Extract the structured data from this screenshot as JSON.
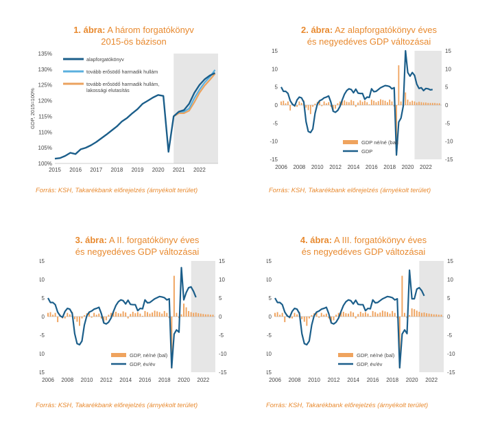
{
  "colors": {
    "title": "#E8892E",
    "base": "#1B5E8A",
    "alt_light": "#5AB0DE",
    "alt_orange": "#EBA25E",
    "bar": "#EFA35E",
    "shade": "#E6E6E6",
    "axis_text": "#444444"
  },
  "chart_data": [
    {
      "type": "line",
      "number": "1. ábra:",
      "title": "A három forgatókönyv\n2015-ös bázison",
      "ylabel": "GDP, 2015=100%",
      "xlim": [
        2015,
        2022.9
      ],
      "ylim": [
        100,
        135
      ],
      "yticks": [
        "100%",
        "105%",
        "110%",
        "115%",
        "120%",
        "125%",
        "130%",
        "135%"
      ],
      "xticks": [
        "2015",
        "2016",
        "2017",
        "2018",
        "2019",
        "2020",
        "2021",
        "2022"
      ],
      "forecast_start": 2020.75,
      "legend": [
        "alapforgatókönyv",
        "tovább erősödő harmadik hullám",
        "tovább erősödő harmadik hullám,\nlakossági elutasítás"
      ],
      "series": [
        {
          "name": "alapforgatókönyv",
          "x": [
            2015,
            2015.25,
            2015.5,
            2015.75,
            2016,
            2016.25,
            2016.5,
            2016.75,
            2017,
            2017.25,
            2017.5,
            2017.75,
            2018,
            2018.25,
            2018.5,
            2018.75,
            2019,
            2019.25,
            2019.5,
            2019.75,
            2020,
            2020.25,
            2020.5,
            2020.75,
            2021,
            2021.25,
            2021.5,
            2021.75,
            2022,
            2022.25,
            2022.5,
            2022.75
          ],
          "values": [
            101.5,
            101.7,
            102.4,
            103.4,
            103.0,
            104.5,
            105.0,
            105.8,
            106.8,
            108.0,
            109.2,
            110.5,
            111.8,
            113.4,
            114.5,
            116.0,
            117.3,
            119.0,
            120.0,
            121.0,
            121.8,
            121.5,
            103.7,
            115.0,
            116.5,
            117.0,
            119.0,
            122.5,
            125.0,
            126.8,
            128.0,
            128.8
          ]
        },
        {
          "name": "tovább erősödő harmadik hullám",
          "x": [
            2020.75,
            2021,
            2021.25,
            2021.5,
            2021.75,
            2022,
            2022.25,
            2022.5,
            2022.75
          ],
          "values": [
            115.0,
            116.4,
            116.5,
            117.5,
            120.8,
            123.5,
            125.8,
            127.5,
            129.8
          ]
        },
        {
          "name": "tovább erősödő harmadik hullám, lakossági elutasítás",
          "x": [
            2020.75,
            2021,
            2021.25,
            2021.5,
            2021.75,
            2022,
            2022.25,
            2022.5,
            2022.75
          ],
          "values": [
            115.0,
            116.0,
            116.0,
            116.8,
            119.5,
            122.5,
            124.8,
            126.6,
            128.6
          ]
        }
      ]
    },
    {
      "type": "bar+line",
      "number": "2. ábra:",
      "title": "Az alapforgatókönyv éves\nés negyedéves GDP változásai",
      "xlim": [
        2006,
        2023.75
      ],
      "ylim": [
        -15,
        15
      ],
      "yticks": [
        "-15",
        "-10",
        "-5",
        "0",
        "5",
        "10",
        "15"
      ],
      "xticks": [
        "2006",
        "2008",
        "2010",
        "2012",
        "2014",
        "2016",
        "2018",
        "2020",
        "2022"
      ],
      "forecast_start": 2020.75,
      "legend": [
        "GDP né/né (bal)",
        "GDP"
      ],
      "bars": [
        1.0,
        1.2,
        0.5,
        1.0,
        -1.5,
        0.5,
        -0.5,
        -0.5,
        1.0,
        0.6,
        1.3,
        -0.7,
        -1.4,
        -2.5,
        -0.5,
        0.4,
        0.9,
        1.0,
        -0.3,
        1.0,
        0.5,
        0.8,
        -0.5,
        -1.5,
        -1.0,
        0.5,
        1.0,
        1.2,
        1.3,
        0.9,
        0.8,
        1.4,
        1.1,
        -0.5,
        0.7,
        1.3,
        0.9,
        1.2,
        0.8,
        0.2,
        1.5,
        1.2,
        0.8,
        1.1,
        1.6,
        1.4,
        1.2,
        0.8,
        1.5,
        1.0,
        -0.4,
        -14.0,
        11.0,
        1.0,
        -0.4,
        3.5,
        1.5,
        0.9,
        1.2,
        1.0,
        0.7,
        0.9,
        0.8,
        0.7,
        0.7,
        0.6,
        0.6,
        0.6,
        0.6,
        0.5,
        0.5
      ],
      "line": {
        "name": "GDP",
        "values": [
          5.0,
          3.8,
          3.8,
          3.2,
          1.2,
          0.2,
          -0.2,
          1.4,
          2.2,
          2.0,
          0.8,
          -4.6,
          -7.3,
          -7.6,
          -6.6,
          -2.3,
          0.2,
          1.2,
          1.5,
          2.0,
          2.2,
          2.5,
          0.8,
          -1.7,
          -2.0,
          -1.5,
          -0.4,
          1.4,
          3.0,
          4.0,
          4.5,
          4.3,
          3.4,
          4.4,
          3.3,
          3.2,
          3.2,
          1.6,
          2.2,
          2.1,
          4.5,
          3.7,
          3.8,
          4.3,
          4.8,
          5.1,
          5.4,
          5.3,
          5.1,
          4.5,
          4.8,
          -13.8,
          -4.7,
          -3.6,
          -0.3,
          15.0,
          9.0,
          8.0,
          9.0,
          8.2,
          5.8,
          4.6,
          4.8,
          4.0,
          4.6,
          4.5,
          4.2,
          4.3
        ]
      }
    },
    {
      "type": "bar+line",
      "number": "3. ábra:",
      "title": "A II. forgatókönyv éves\nés negyedéves GDP változásai",
      "xlim": [
        2006,
        2023.25
      ],
      "ylim": [
        -15,
        15
      ],
      "yticks": [
        "-15",
        "-10",
        "-5",
        "0",
        "5",
        "10",
        "15"
      ],
      "xticks": [
        "2006",
        "2008",
        "2010",
        "2012",
        "2014",
        "2016",
        "2018",
        "2020",
        "2022"
      ],
      "forecast_start": 2020.75,
      "legend": [
        "GDP, né/né (bal)",
        "GDP, év/év"
      ],
      "bars": [
        1.0,
        1.2,
        0.5,
        1.0,
        -1.5,
        0.5,
        -0.5,
        -0.5,
        1.0,
        0.6,
        1.3,
        -0.7,
        -1.4,
        -2.5,
        -0.5,
        0.4,
        0.9,
        1.0,
        -0.3,
        1.0,
        0.5,
        0.8,
        -0.5,
        -1.5,
        -1.0,
        0.5,
        1.0,
        1.2,
        1.3,
        0.9,
        0.8,
        1.4,
        1.1,
        -0.5,
        0.7,
        1.3,
        0.9,
        1.2,
        0.8,
        0.2,
        1.5,
        1.2,
        0.8,
        1.1,
        1.6,
        1.4,
        1.2,
        0.8,
        1.5,
        1.0,
        -0.4,
        -14.0,
        11.0,
        1.0,
        -0.4,
        0.6,
        3.5,
        2.5,
        1.5,
        1.2,
        1.0,
        1.1,
        0.9,
        0.8,
        0.7,
        0.6,
        0.6,
        0.5,
        0.5
      ],
      "line": {
        "name": "GDP, év/év",
        "values": [
          5.0,
          3.8,
          3.8,
          3.2,
          1.2,
          0.2,
          -0.2,
          1.4,
          2.2,
          2.0,
          0.8,
          -4.6,
          -7.3,
          -7.6,
          -6.6,
          -2.3,
          0.2,
          1.2,
          1.5,
          2.0,
          2.2,
          2.5,
          0.8,
          -1.7,
          -2.0,
          -1.5,
          -0.4,
          1.4,
          3.0,
          4.0,
          4.5,
          4.3,
          3.4,
          4.4,
          3.3,
          3.2,
          3.2,
          1.6,
          2.2,
          2.1,
          4.5,
          3.7,
          3.8,
          4.3,
          4.8,
          5.1,
          5.4,
          5.3,
          5.1,
          4.5,
          4.8,
          -13.8,
          -4.7,
          -3.6,
          -4.2,
          13.2,
          4.5,
          6.5,
          7.8,
          8.0,
          6.8,
          5.2
        ]
      }
    },
    {
      "type": "bar+line",
      "number": "4. ábra:",
      "title": "A III. forgatókönyv éves\nés negyedéves GDP változásai",
      "xlim": [
        2006,
        2023.25
      ],
      "ylim": [
        -15,
        15
      ],
      "yticks": [
        "-15",
        "-10",
        "-5",
        "0",
        "5",
        "10",
        "15"
      ],
      "xticks": [
        "2006",
        "2008",
        "2010",
        "2012",
        "2014",
        "2016",
        "2018",
        "2020",
        "2022"
      ],
      "forecast_start": 2020.75,
      "legend": [
        "GDP, né/né (bal)",
        "GDP, év/év"
      ],
      "bars": [
        1.0,
        1.2,
        0.5,
        1.0,
        -1.5,
        0.5,
        -0.5,
        -0.5,
        1.0,
        0.6,
        1.3,
        -0.7,
        -1.4,
        -2.5,
        -0.5,
        0.4,
        0.9,
        1.0,
        -0.3,
        1.0,
        0.5,
        0.8,
        -0.5,
        -1.5,
        -1.0,
        0.5,
        1.0,
        1.2,
        1.3,
        0.9,
        0.8,
        1.4,
        1.1,
        -0.5,
        0.7,
        1.3,
        0.9,
        1.2,
        0.8,
        0.2,
        1.5,
        1.2,
        0.8,
        1.1,
        1.6,
        1.4,
        1.2,
        0.8,
        1.5,
        1.0,
        -0.4,
        -14.0,
        11.0,
        1.0,
        -0.4,
        0.4,
        2.2,
        2.0,
        1.6,
        1.3,
        1.0,
        1.1,
        0.9,
        0.8,
        0.7,
        0.6,
        0.6,
        0.5,
        0.5
      ],
      "line": {
        "name": "GDP, év/év",
        "values": [
          5.0,
          3.8,
          3.8,
          3.2,
          1.2,
          0.2,
          -0.2,
          1.4,
          2.2,
          2.0,
          0.8,
          -4.6,
          -7.3,
          -7.6,
          -6.6,
          -2.3,
          0.2,
          1.2,
          1.5,
          2.0,
          2.2,
          2.5,
          0.8,
          -1.7,
          -2.0,
          -1.5,
          -0.4,
          1.4,
          3.0,
          4.0,
          4.5,
          4.3,
          3.4,
          4.4,
          3.3,
          3.2,
          3.2,
          1.6,
          2.2,
          2.1,
          4.5,
          3.7,
          3.8,
          4.3,
          4.8,
          5.1,
          5.4,
          5.3,
          5.1,
          4.5,
          4.8,
          -13.8,
          -4.7,
          -3.6,
          -4.6,
          12.5,
          4.8,
          4.8,
          7.4,
          7.8,
          7.0,
          5.6
        ]
      }
    }
  ],
  "sources": [
    "Forrás: KSH, Takarékbank előrejelzés (árnyékolt terület)",
    "Forrás: KSH, Takarékbank előrejelzés (árnyékolt terület)",
    "Forrás: KSH, Takarékbank előrejelzés (árnyékolt terület)",
    "Forrás: KSH, Takarékbank előrejelzés (árnyékolt terület)"
  ]
}
